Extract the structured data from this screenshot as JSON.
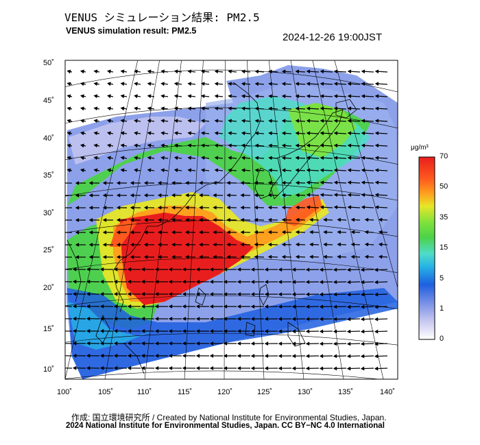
{
  "header": {
    "title_ja": "VENUS シミュレーション結果: PM2.5",
    "title_en": "VENUS simulation result: PM2.5",
    "timestamp": "2024-12-26 19:00JST"
  },
  "map": {
    "lat_labels": [
      "50˚",
      "45˚",
      "40˚",
      "35˚",
      "30˚",
      "25˚",
      "20˚",
      "15˚",
      "10˚"
    ],
    "lon_labels": [
      "100˚",
      "105˚",
      "110˚",
      "115˚",
      "120˚",
      "125˚",
      "130˚",
      "135˚",
      "140˚"
    ]
  },
  "colorbar": {
    "unit": "μg/m³",
    "ticks": [
      "70",
      "50",
      "35",
      "15",
      "5",
      "1",
      "0"
    ],
    "colors": [
      "#ffffff",
      "#c8c8f0",
      "#7890e6",
      "#1f5fe0",
      "#26b4e6",
      "#4fdcc8",
      "#4cd248",
      "#7ee23c",
      "#e6e628",
      "#ffa01e",
      "#ff5a1e",
      "#e81e1e"
    ]
  },
  "footer": {
    "credit": "作成: 国立環境研究所 / Created by National Institute for Environmental Studies, Japan.",
    "license": "2024 National Institute for Environmental Studies, Japan. CC BY−NC 4.0 International"
  }
}
